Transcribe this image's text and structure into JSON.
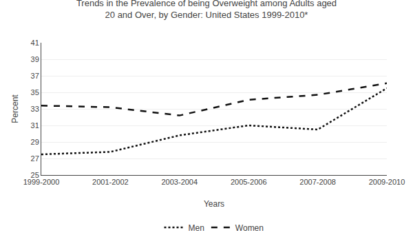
{
  "chart_data": {
    "type": "line",
    "title": "Trends in the Prevalence of being Overweight among Adults aged\n20 and Over, by Gender: United States 1999-2010*",
    "xlabel": "Years",
    "ylabel": "Percent",
    "categories": [
      "1999-2000",
      "2001-2002",
      "2003-2004",
      "2005-2006",
      "2007-2008",
      "2009-2010"
    ],
    "series": [
      {
        "name": "Men",
        "color": "#111111",
        "line_style": "dotted",
        "values": [
          27.5,
          27.8,
          29.8,
          31.0,
          30.5,
          35.5
        ]
      },
      {
        "name": "Women",
        "color": "#111111",
        "line_style": "dashed",
        "values": [
          33.4,
          33.2,
          32.2,
          34.1,
          34.7,
          36.1
        ]
      }
    ],
    "ylim": [
      25,
      41
    ],
    "yticks": [
      25,
      27,
      29,
      31,
      33,
      35,
      37,
      39,
      41
    ],
    "grid": true,
    "legend": "bottom"
  }
}
